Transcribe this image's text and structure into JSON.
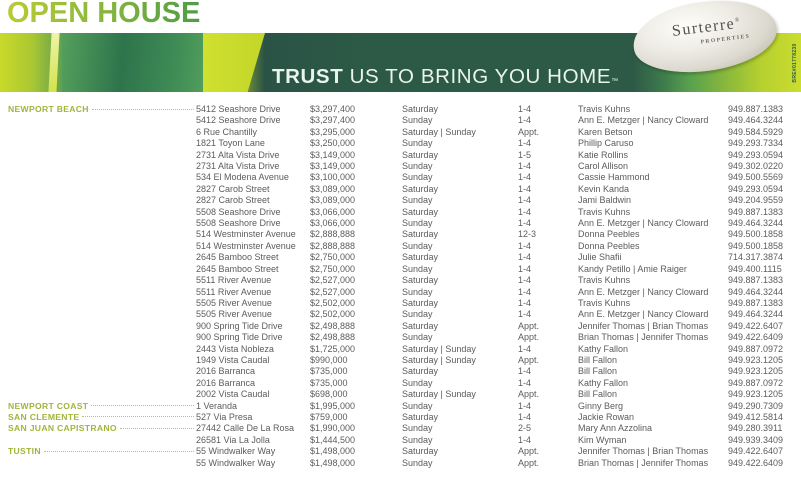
{
  "header": {
    "title": "OPEN HOUSE",
    "tagline_bold": "TRUST",
    "tagline_rest": " US TO BRING YOU HOME",
    "tagline_tm": "™",
    "logo_name": "Surterre",
    "logo_reg": "®",
    "logo_sub": "PROPERTIES",
    "license_code": "BRE#01778230",
    "colors": {
      "title_gradient_start": "#b9cb33",
      "title_gradient_end": "#4f9c45",
      "banner_dark_green": "#2d5947",
      "banner_lime": "#c9d929",
      "city_green": "#a3b43c",
      "body_text": "#5b5c5e",
      "tagline_text": "#e9f4ed"
    }
  },
  "table": {
    "rows": [
      {
        "city": "NEWPORT BEACH",
        "address": "5412 Seashore Drive",
        "price": "$3,297,400",
        "day": "Saturday",
        "time": "1-4",
        "agent": "Travis Kuhns",
        "phone": "949.887.1383"
      },
      {
        "city": "",
        "address": "5412 Seashore Drive",
        "price": "$3,297,400",
        "day": "Sunday",
        "time": "1-4",
        "agent": "Ann E. Metzger | Nancy Cloward",
        "phone": "949.464.3244"
      },
      {
        "city": "",
        "address": "6 Rue Chantilly",
        "price": "$3,295,000",
        "day": "Saturday | Sunday",
        "time": "Appt.",
        "agent": "Karen Betson",
        "phone": "949.584.5929"
      },
      {
        "city": "",
        "address": "1821 Toyon Lane",
        "price": "$3,250,000",
        "day": "Sunday",
        "time": "1-4",
        "agent": "Phillip Caruso",
        "phone": "949.293.7334"
      },
      {
        "city": "",
        "address": "2731 Alta Vista Drive",
        "price": "$3,149,000",
        "day": "Saturday",
        "time": "1-5",
        "agent": "Katie Rollins",
        "phone": "949.293.0594"
      },
      {
        "city": "",
        "address": "2731 Alta Vista Drive",
        "price": "$3,149,000",
        "day": "Sunday",
        "time": "1-4",
        "agent": "Carol Allison",
        "phone": "949.302.0220"
      },
      {
        "city": "",
        "address": "534 El Modena Avenue",
        "price": "$3,100,000",
        "day": "Sunday",
        "time": "1-4",
        "agent": "Cassie Hammond",
        "phone": "949.500.5569"
      },
      {
        "city": "",
        "address": "2827 Carob Street",
        "price": "$3,089,000",
        "day": "Saturday",
        "time": "1-4",
        "agent": "Kevin Kanda",
        "phone": "949.293.0594"
      },
      {
        "city": "",
        "address": "2827 Carob Street",
        "price": "$3,089,000",
        "day": "Sunday",
        "time": "1-4",
        "agent": "Jami Baldwin",
        "phone": "949.204.9559"
      },
      {
        "city": "",
        "address": "5508 Seashore Drive",
        "price": "$3,066,000",
        "day": "Saturday",
        "time": "1-4",
        "agent": "Travis Kuhns",
        "phone": "949.887.1383"
      },
      {
        "city": "",
        "address": "5508 Seashore Drive",
        "price": "$3,066,000",
        "day": "Sunday",
        "time": "1-4",
        "agent": "Ann E. Metzger | Nancy Cloward",
        "phone": "949.464.3244"
      },
      {
        "city": "",
        "address": "514 Westminster Avenue",
        "price": "$2,888,888",
        "day": "Saturday",
        "time": "12-3",
        "agent": "Donna Peebles",
        "phone": "949.500.1858"
      },
      {
        "city": "",
        "address": "514 Westminster Avenue",
        "price": "$2,888,888",
        "day": "Sunday",
        "time": "1-4",
        "agent": "Donna Peebles",
        "phone": "949.500.1858"
      },
      {
        "city": "",
        "address": "2645 Bamboo Street",
        "price": "$2,750,000",
        "day": "Saturday",
        "time": "1-4",
        "agent": "Julie Shafii",
        "phone": "714.317.3874"
      },
      {
        "city": "",
        "address": "2645 Bamboo Street",
        "price": "$2,750,000",
        "day": "Sunday",
        "time": "1-4",
        "agent": "Kandy Petillo | Amie Raiger",
        "phone": "949.400.1115"
      },
      {
        "city": "",
        "address": "5511 River Avenue",
        "price": "$2,527,000",
        "day": "Saturday",
        "time": "1-4",
        "agent": "Travis Kuhns",
        "phone": "949.887.1383"
      },
      {
        "city": "",
        "address": "5511 River Avenue",
        "price": "$2,527,000",
        "day": "Sunday",
        "time": "1-4",
        "agent": "Ann E. Metzger | Nancy Cloward",
        "phone": "949.464.3244"
      },
      {
        "city": "",
        "address": "5505 River Avenue",
        "price": "$2,502,000",
        "day": "Saturday",
        "time": "1-4",
        "agent": "Travis Kuhns",
        "phone": "949.887.1383"
      },
      {
        "city": "",
        "address": "5505 River Avenue",
        "price": "$2,502,000",
        "day": "Sunday",
        "time": "1-4",
        "agent": "Ann E. Metzger | Nancy Cloward",
        "phone": "949.464.3244"
      },
      {
        "city": "",
        "address": "900 Spring Tide Drive",
        "price": "$2,498,888",
        "day": "Saturday",
        "time": "Appt.",
        "agent": "Jennifer Thomas | Brian Thomas",
        "phone": "949.422.6407"
      },
      {
        "city": "",
        "address": "900 Spring Tide Drive",
        "price": "$2,498,888",
        "day": "Sunday",
        "time": "Appt.",
        "agent": "Brian Thomas | Jennifer Thomas",
        "phone": "949.422.6409"
      },
      {
        "city": "",
        "address": "2443 Vista Nobleza",
        "price": "$1,725,000",
        "day": "Saturday | Sunday",
        "time": "1-4",
        "agent": "Kathy Fallon",
        "phone": "949.887.0972"
      },
      {
        "city": "",
        "address": "1949 Vista Caudal",
        "price": "$990,000",
        "day": "Saturday | Sunday",
        "time": "Appt.",
        "agent": "Bill Fallon",
        "phone": "949.923.1205"
      },
      {
        "city": "",
        "address": "2016 Barranca",
        "price": "$735,000",
        "day": "Saturday",
        "time": "1-4",
        "agent": "Bill Fallon",
        "phone": "949.923.1205"
      },
      {
        "city": "",
        "address": "2016 Barranca",
        "price": "$735,000",
        "day": "Sunday",
        "time": "1-4",
        "agent": "Kathy Fallon",
        "phone": "949.887.0972"
      },
      {
        "city": "",
        "address": "2002 Vista Caudal",
        "price": "$698,000",
        "day": "Saturday | Sunday",
        "time": "Appt.",
        "agent": "Bill Fallon",
        "phone": "949.923.1205"
      },
      {
        "city": "NEWPORT COAST",
        "address": "1 Veranda",
        "price": "$1,995,000",
        "day": "Sunday",
        "time": "1-4",
        "agent": "Ginny Berg",
        "phone": "949.290.7309"
      },
      {
        "city": "SAN CLEMENTE",
        "address": "527 Via Presa",
        "price": "$759,000",
        "day": "Saturday",
        "time": "1-4",
        "agent": "Jackie Rowan",
        "phone": "949.412.5814"
      },
      {
        "city": "SAN JUAN CAPISTRANO",
        "address": "27442 Calle De La Rosa",
        "price": "$1,990,000",
        "day": "Sunday",
        "time": "2-5",
        "agent": "Mary Ann Azzolina",
        "phone": "949.280.3911"
      },
      {
        "city": "",
        "address": "26581 Via La Jolla",
        "price": "$1,444,500",
        "day": "Sunday",
        "time": "1-4",
        "agent": "Kim Wyman",
        "phone": "949.939.3409"
      },
      {
        "city": "TUSTIN",
        "address": "55 Windwalker Way",
        "price": "$1,498,000",
        "day": "Saturday",
        "time": "Appt.",
        "agent": "Jennifer Thomas | Brian Thomas",
        "phone": "949.422.6407"
      },
      {
        "city": "",
        "address": "55 Windwalker Way",
        "price": "$1,498,000",
        "day": "Sunday",
        "time": "Appt.",
        "agent": "Brian Thomas | Jennifer Thomas",
        "phone": "949.422.6409"
      }
    ]
  }
}
